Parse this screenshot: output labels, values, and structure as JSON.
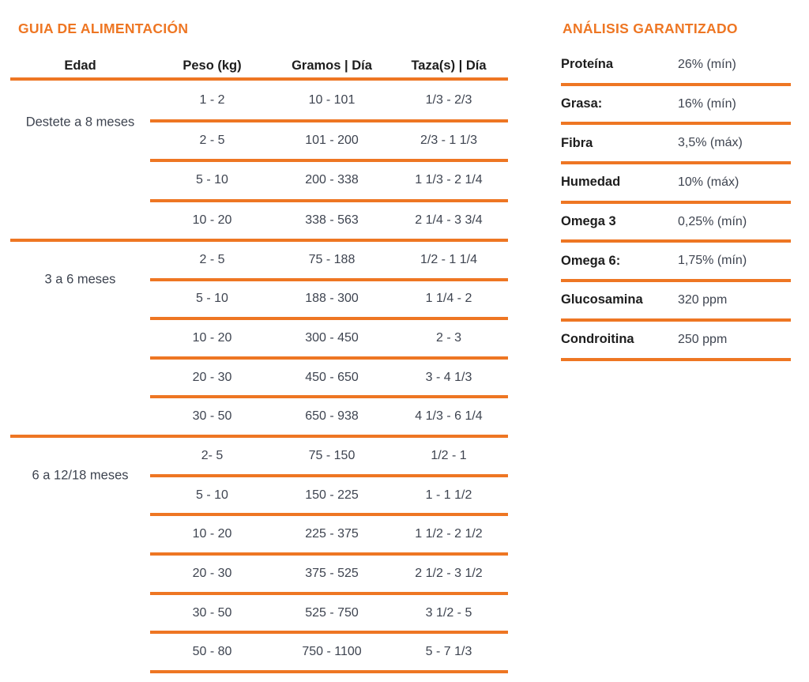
{
  "accent_color": "#ee7623",
  "feeding_guide": {
    "title": "GUIA DE ALIMENTACIÓN",
    "headers": [
      "Edad",
      "Peso (kg)",
      "Gramos | Día",
      "Taza(s) | Día"
    ],
    "groups": [
      {
        "label": "Destete a 8 meses",
        "rows": [
          [
            "1 - 2",
            "10 - 101",
            "1/3 - 2/3"
          ],
          [
            "2 - 5",
            "101 - 200",
            "2/3 - 1 1/3"
          ],
          [
            "5 - 10",
            "200 - 338",
            "1 1/3 - 2 1/4"
          ],
          [
            "10 - 20",
            "338 - 563",
            "2 1/4 - 3 3/4"
          ]
        ]
      },
      {
        "label": "3 a 6 meses",
        "rows": [
          [
            "2 - 5",
            "75 - 188",
            "1/2 - 1 1/4"
          ],
          [
            "5 - 10",
            "188 - 300",
            "1 1/4 - 2"
          ],
          [
            "10 - 20",
            "300 - 450",
            "2 - 3"
          ],
          [
            "20 - 30",
            "450 - 650",
            "3 - 4 1/3"
          ],
          [
            "30 - 50",
            "650 - 938",
            "4 1/3 - 6 1/4"
          ]
        ]
      },
      {
        "label": "6 a 12/18 meses",
        "rows": [
          [
            "2- 5",
            "75 - 150",
            "1/2 - 1"
          ],
          [
            "5 - 10",
            "150 - 225",
            "1 - 1 1/2"
          ],
          [
            "10 - 20",
            "225 - 375",
            "1 1/2 - 2 1/2"
          ],
          [
            "20 - 30",
            "375 - 525",
            "2 1/2 - 3 1/2"
          ],
          [
            "30 - 50",
            "525 - 750",
            "3 1/2 - 5"
          ],
          [
            "50 - 80",
            "750 - 1100",
            "5 - 7 1/3"
          ]
        ]
      }
    ]
  },
  "guaranteed_analysis": {
    "title": "ANÁLISIS GARANTIZADO",
    "rows": [
      {
        "label": "Proteína",
        "value": "26% (mín)"
      },
      {
        "label": "Grasa:",
        "value": "16% (mín)"
      },
      {
        "label": "Fibra",
        "value": "3,5% (máx)"
      },
      {
        "label": "Humedad",
        "value": "10% (máx)"
      },
      {
        "label": "Omega 3",
        "value": "0,25% (mín)"
      },
      {
        "label": "Omega 6:",
        "value": "1,75% (mín)"
      },
      {
        "label": "Glucosamina",
        "value": "320 ppm"
      },
      {
        "label": "Condroitina",
        "value": "250 ppm"
      }
    ]
  }
}
